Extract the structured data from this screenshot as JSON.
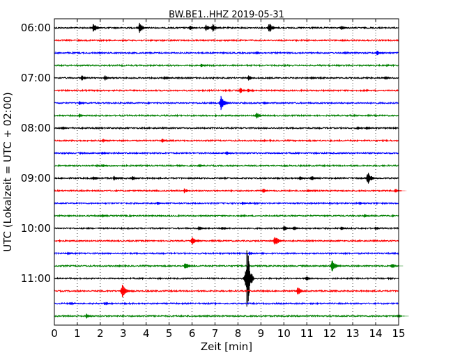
{
  "chart_data": {
    "type": "line",
    "title": "BW.BE1..HHZ 2019-05-31",
    "xlabel": "Zeit  [min]",
    "ylabel": "UTC (Lokalzeit = UTC + 02:00)",
    "xlim": [
      0,
      15
    ],
    "x_ticks": [
      "0",
      "1",
      "2",
      "3",
      "4",
      "5",
      "6",
      "7",
      "8",
      "9",
      "10",
      "11",
      "12",
      "13",
      "14",
      "15"
    ],
    "y_ticks": [
      "06:00",
      "07:00",
      "08:00",
      "09:00",
      "10:00",
      "11:00"
    ],
    "grid": "vertical dotted",
    "line_colors": [
      "#000000",
      "#ff0000",
      "#0000ff",
      "#008000"
    ],
    "traces": [
      {
        "start": "06:00",
        "color": "#000000",
        "events": [
          {
            "t": 1.7,
            "a": 7
          },
          {
            "t": 3.7,
            "a": 8
          },
          {
            "t": 5.9,
            "a": 4
          },
          {
            "t": 6.6,
            "a": 5
          },
          {
            "t": 6.9,
            "a": 6
          },
          {
            "t": 9.35,
            "a": 8
          },
          {
            "t": 12.5,
            "a": 4
          }
        ]
      },
      {
        "start": "06:15",
        "color": "#ff0000",
        "events": []
      },
      {
        "start": "06:30",
        "color": "#0000ff",
        "events": [
          {
            "t": 8.8,
            "a": 3
          },
          {
            "t": 14.05,
            "a": 4
          }
        ]
      },
      {
        "start": "06:45",
        "color": "#008000",
        "events": [
          {
            "t": 6.4,
            "a": 3
          }
        ]
      },
      {
        "start": "07:00",
        "color": "#000000",
        "events": [
          {
            "t": 1.2,
            "a": 4
          },
          {
            "t": 2.2,
            "a": 4
          },
          {
            "t": 4.8,
            "a": 4
          },
          {
            "t": 8.45,
            "a": 4
          },
          {
            "t": 11.2,
            "a": 3
          },
          {
            "t": 14.4,
            "a": 3
          }
        ]
      },
      {
        "start": "07:15",
        "color": "#ff0000",
        "events": [
          {
            "t": 8.1,
            "a": 5
          },
          {
            "t": 8.45,
            "a": 3
          }
        ]
      },
      {
        "start": "07:30",
        "color": "#0000ff",
        "events": [
          {
            "t": 1.1,
            "a": 3
          },
          {
            "t": 7.25,
            "a": 11
          },
          {
            "t": 9.15,
            "a": 3
          }
        ]
      },
      {
        "start": "07:45",
        "color": "#008000",
        "events": [
          {
            "t": 1.1,
            "a": 3
          },
          {
            "t": 8.8,
            "a": 5
          }
        ]
      },
      {
        "start": "08:00",
        "color": "#000000",
        "events": [
          {
            "t": 0.35,
            "a": 3
          },
          {
            "t": 13.2,
            "a": 3
          },
          {
            "t": 13.6,
            "a": 3
          }
        ]
      },
      {
        "start": "08:15",
        "color": "#ff0000",
        "events": [
          {
            "t": 2.1,
            "a": 3
          },
          {
            "t": 4.7,
            "a": 3
          }
        ]
      },
      {
        "start": "08:30",
        "color": "#0000ff",
        "events": [
          {
            "t": 2.1,
            "a": 3
          },
          {
            "t": 7.5,
            "a": 3
          }
        ]
      },
      {
        "start": "08:45",
        "color": "#008000",
        "events": [
          {
            "t": 2.1,
            "a": 3
          },
          {
            "t": 6.3,
            "a": 3
          }
        ]
      },
      {
        "start": "09:00",
        "color": "#000000",
        "events": [
          {
            "t": 1.7,
            "a": 4
          },
          {
            "t": 2.6,
            "a": 4
          },
          {
            "t": 3.4,
            "a": 4
          },
          {
            "t": 10.7,
            "a": 3
          },
          {
            "t": 11.2,
            "a": 4
          },
          {
            "t": 13.65,
            "a": 10
          }
        ]
      },
      {
        "start": "09:15",
        "color": "#ff0000",
        "events": [
          {
            "t": 5.65,
            "a": 4
          },
          {
            "t": 9.1,
            "a": 4
          },
          {
            "t": 11.05,
            "a": 3
          },
          {
            "t": 14.85,
            "a": 3
          }
        ]
      },
      {
        "start": "09:30",
        "color": "#0000ff",
        "events": [
          {
            "t": 4.5,
            "a": 3
          },
          {
            "t": 8.2,
            "a": 3
          },
          {
            "t": 13.3,
            "a": 3
          }
        ]
      },
      {
        "start": "09:45",
        "color": "#008000",
        "events": [
          {
            "t": 2.1,
            "a": 3
          },
          {
            "t": 13.5,
            "a": 3
          }
        ]
      },
      {
        "start": "10:00",
        "color": "#000000",
        "events": [
          {
            "t": 6.3,
            "a": 4
          },
          {
            "t": 7.3,
            "a": 3
          },
          {
            "t": 10.0,
            "a": 4
          },
          {
            "t": 10.4,
            "a": 4
          },
          {
            "t": 12.5,
            "a": 3
          },
          {
            "t": 14.0,
            "a": 3
          }
        ]
      },
      {
        "start": "10:15",
        "color": "#ff0000",
        "events": [
          {
            "t": 6.0,
            "a": 6
          },
          {
            "t": 9.6,
            "a": 8
          }
        ]
      },
      {
        "start": "10:30",
        "color": "#0000ff",
        "events": [
          {
            "t": 0.6,
            "a": 3
          },
          {
            "t": 8.5,
            "a": 3
          }
        ]
      },
      {
        "start": "10:45",
        "color": "#008000",
        "events": [
          {
            "t": 5.7,
            "a": 6
          },
          {
            "t": 12.1,
            "a": 10
          },
          {
            "t": 14.7,
            "a": 4
          }
        ]
      },
      {
        "start": "11:00",
        "color": "#000000",
        "events": [
          {
            "t": 8.4,
            "a": 55
          },
          {
            "t": 10.95,
            "a": 4
          }
        ]
      },
      {
        "start": "11:15",
        "color": "#ff0000",
        "events": [
          {
            "t": 2.95,
            "a": 10
          },
          {
            "t": 10.6,
            "a": 6
          }
        ]
      },
      {
        "start": "11:30",
        "color": "#0000ff",
        "events": [
          {
            "t": 0.7,
            "a": 3
          },
          {
            "t": 2.2,
            "a": 3
          }
        ]
      },
      {
        "start": "11:45",
        "color": "#008000",
        "events": [
          {
            "t": 1.4,
            "a": 4
          },
          {
            "t": 14.95,
            "a": 3
          }
        ]
      }
    ]
  }
}
